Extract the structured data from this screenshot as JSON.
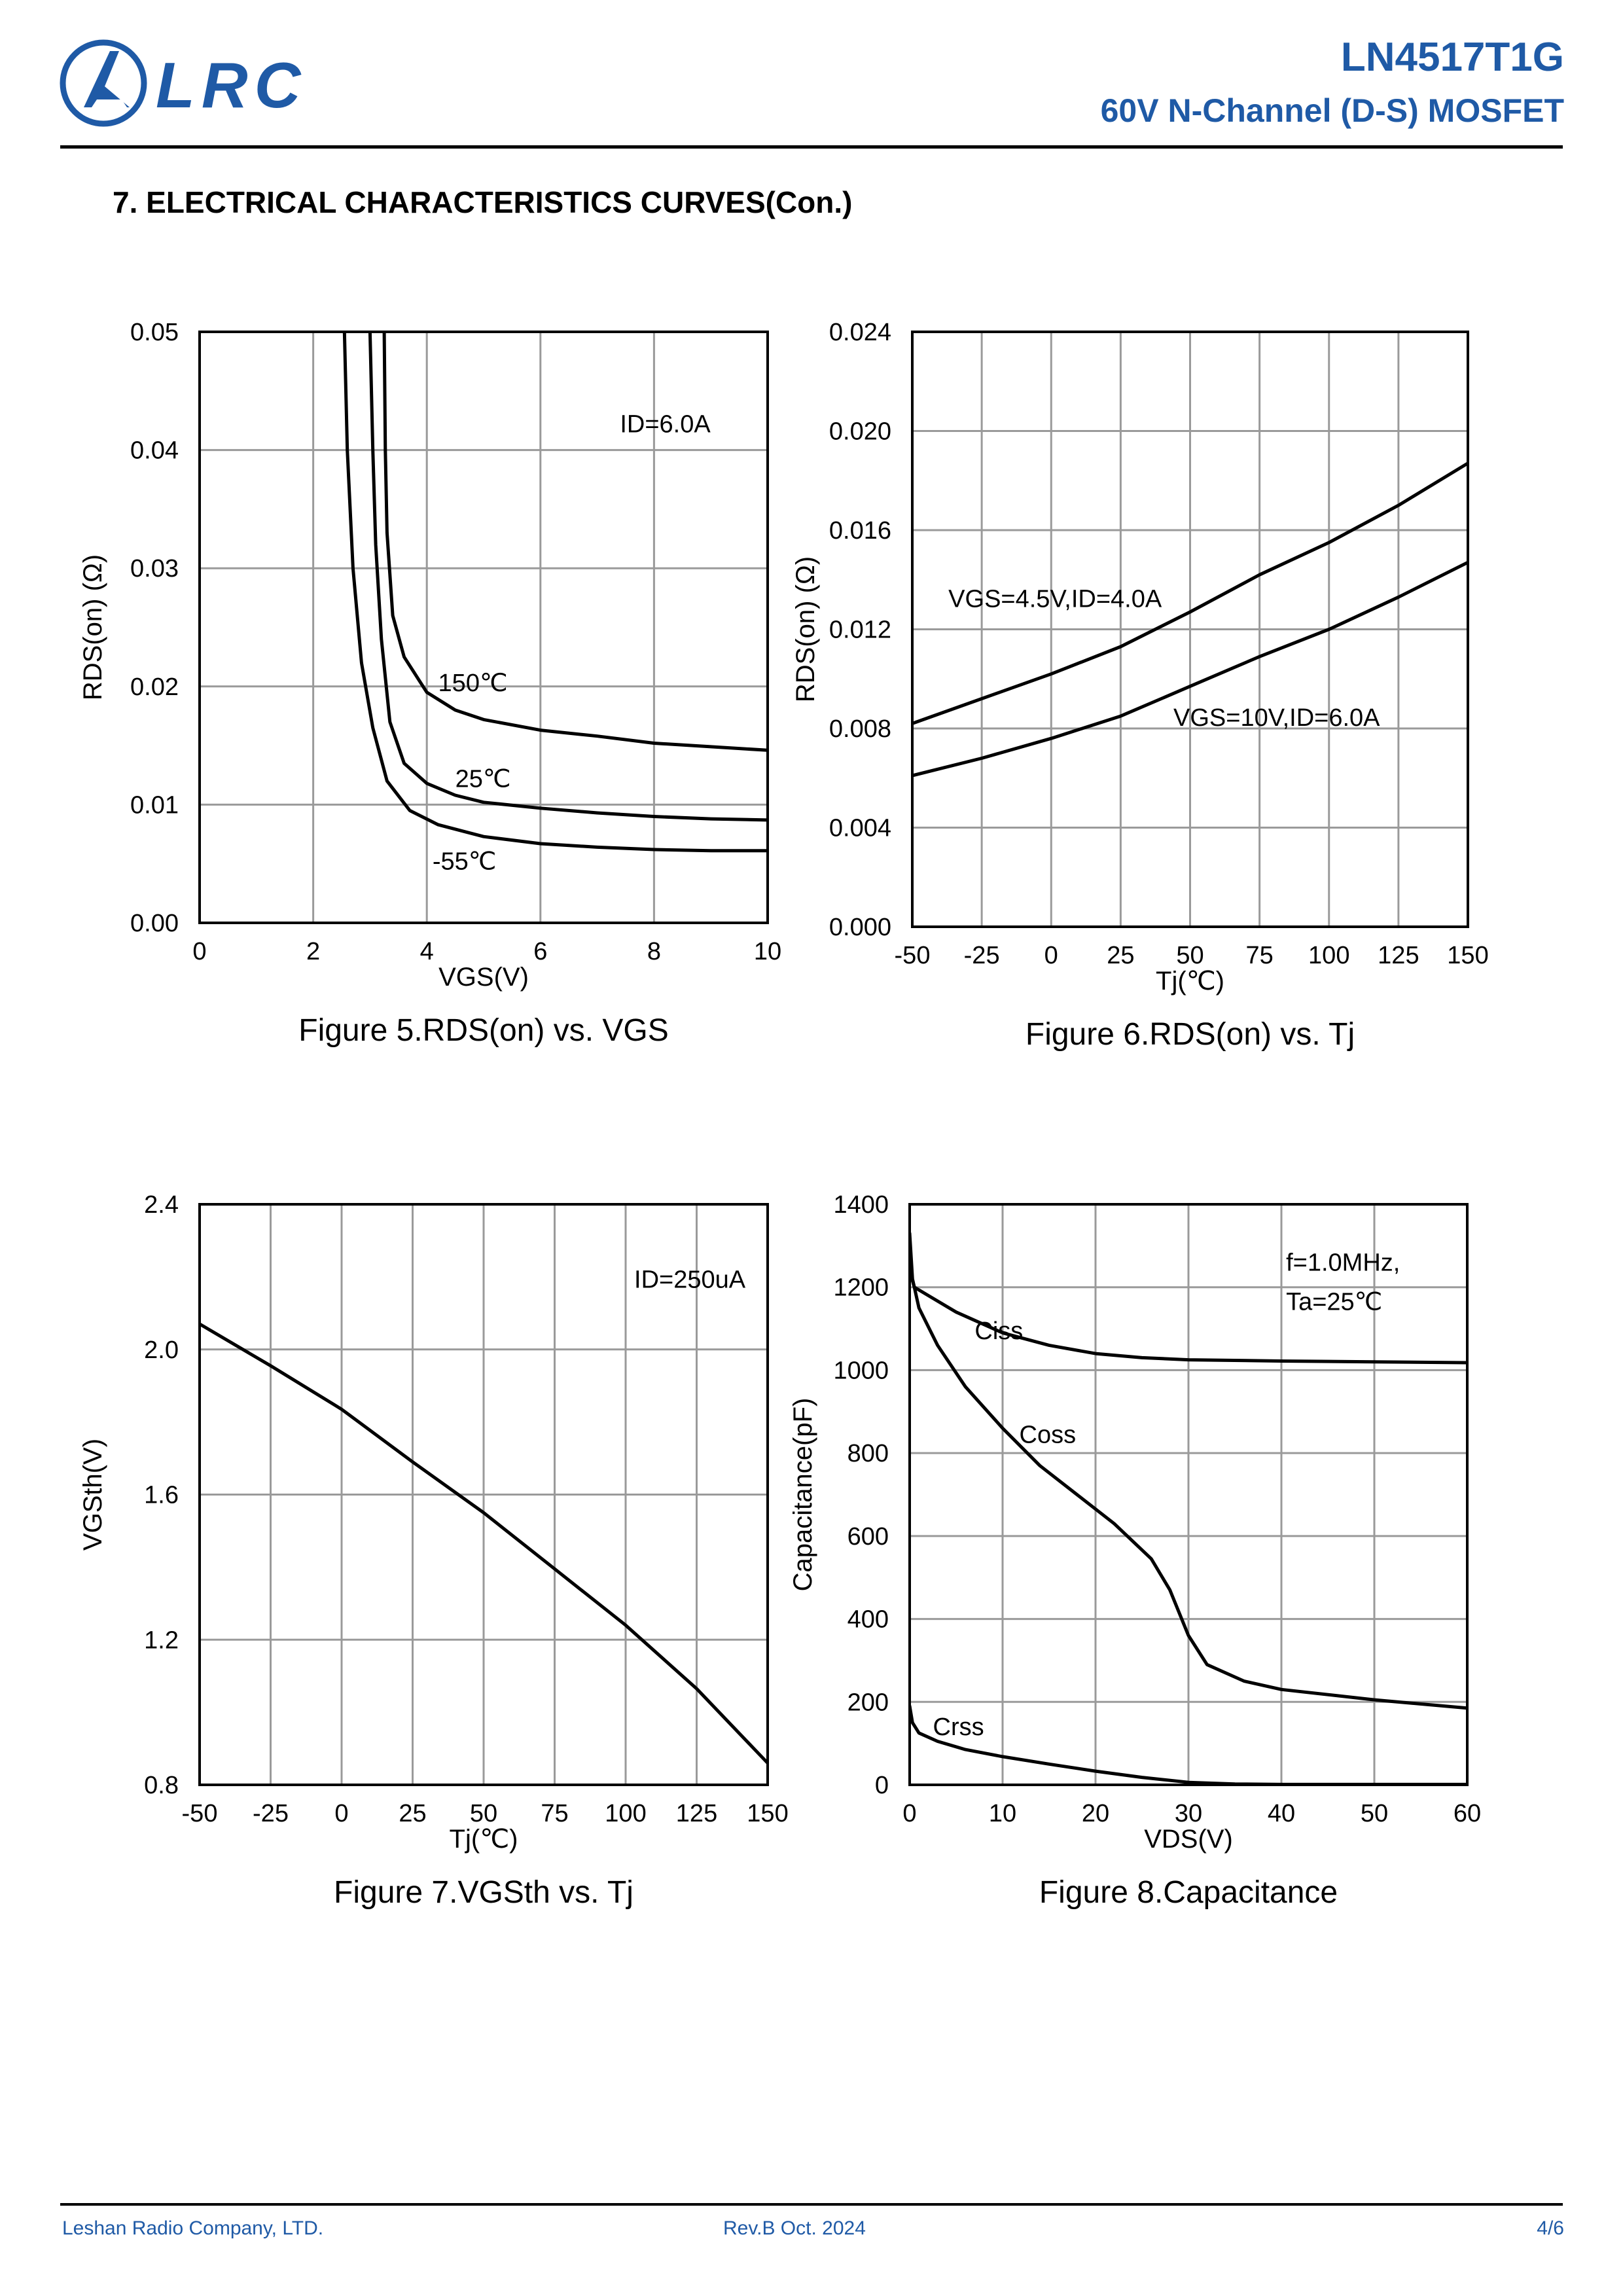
{
  "header": {
    "logo_text": "LRC",
    "part_number": "LN4517T1G",
    "subtitle": "60V N-Channel (D-S) MOSFET"
  },
  "section_title": "7. ELECTRICAL CHARACTERISTICS CURVES(Con.)",
  "footer": {
    "company": "Leshan Radio Company, LTD.",
    "revision": "Rev.B   Oct.  2024",
    "page": "4/6"
  },
  "colors": {
    "brand": "#1f5aa6",
    "grid": "#9a9a9a",
    "line": "#000000"
  },
  "chart_data": [
    {
      "type": "line",
      "caption": "Figure 5.RDS(on) vs. VGS",
      "xlabel": "VGS(V)",
      "ylabel": "RDS(on) (Ω)",
      "xlim": [
        0,
        10
      ],
      "ylim": [
        0,
        0.05
      ],
      "xticks": [
        0,
        2,
        4,
        6,
        8,
        10
      ],
      "yticks": [
        0.0,
        0.01,
        0.02,
        0.03,
        0.04,
        0.05
      ],
      "xtick_labels": [
        "0",
        "2",
        "4",
        "6",
        "8",
        "10"
      ],
      "ytick_labels": [
        "0.00",
        "0.01",
        "0.02",
        "0.03",
        "0.04",
        "0.05"
      ],
      "grid": true,
      "annotations": [
        {
          "text": "ID=6.0A",
          "x": 7.4,
          "y": 0.0415
        }
      ],
      "series": [
        {
          "name": "150℃",
          "label_at": [
            4.2,
            0.0196
          ],
          "points": [
            [
              3.25,
              0.05
            ],
            [
              3.27,
              0.04
            ],
            [
              3.3,
              0.033
            ],
            [
              3.4,
              0.026
            ],
            [
              3.6,
              0.0225
            ],
            [
              4,
              0.0195
            ],
            [
              4.5,
              0.018
            ],
            [
              5,
              0.0172
            ],
            [
              6,
              0.0163
            ],
            [
              7,
              0.0158
            ],
            [
              8,
              0.0152
            ],
            [
              9,
              0.0149
            ],
            [
              10,
              0.0146
            ]
          ]
        },
        {
          "name": "25℃",
          "label_at": [
            4.5,
            0.0115
          ],
          "points": [
            [
              3.0,
              0.05
            ],
            [
              3.05,
              0.04
            ],
            [
              3.1,
              0.032
            ],
            [
              3.2,
              0.024
            ],
            [
              3.35,
              0.017
            ],
            [
              3.6,
              0.0135
            ],
            [
              4,
              0.0118
            ],
            [
              4.5,
              0.0108
            ],
            [
              5,
              0.0102
            ],
            [
              6,
              0.0097
            ],
            [
              7,
              0.0093
            ],
            [
              8,
              0.009
            ],
            [
              9,
              0.0088
            ],
            [
              10,
              0.0087
            ]
          ]
        },
        {
          "name": "-55℃",
          "label_at": [
            4.1,
            0.0045
          ],
          "points": [
            [
              2.55,
              0.05
            ],
            [
              2.6,
              0.04
            ],
            [
              2.7,
              0.03
            ],
            [
              2.85,
              0.022
            ],
            [
              3.05,
              0.0165
            ],
            [
              3.3,
              0.012
            ],
            [
              3.7,
              0.0095
            ],
            [
              4.2,
              0.0083
            ],
            [
              5,
              0.0073
            ],
            [
              6,
              0.0067
            ],
            [
              7,
              0.0064
            ],
            [
              8,
              0.0062
            ],
            [
              9,
              0.0061
            ],
            [
              10,
              0.0061
            ]
          ]
        }
      ]
    },
    {
      "type": "line",
      "caption": "Figure 6.RDS(on) vs. Tj",
      "xlabel": "Tj(℃)",
      "ylabel": "RDS(on) (Ω)",
      "xlim": [
        -50,
        150
      ],
      "ylim": [
        0,
        0.024
      ],
      "xticks": [
        -50,
        -25,
        0,
        25,
        50,
        75,
        100,
        125,
        150
      ],
      "yticks": [
        0.0,
        0.004,
        0.008,
        0.012,
        0.016,
        0.02,
        0.024
      ],
      "xtick_labels": [
        "-50",
        "-25",
        "0",
        "25",
        "50",
        "75",
        "100",
        "125",
        "150"
      ],
      "ytick_labels": [
        "0.000",
        "0.004",
        "0.008",
        "0.012",
        "0.016",
        "0.020",
        "0.024"
      ],
      "grid": true,
      "annotations": [],
      "series": [
        {
          "name": "VGS=4.5V,ID=4.0A",
          "label_at": [
            -37,
            0.0129
          ],
          "points": [
            [
              -50,
              0.0082
            ],
            [
              -25,
              0.0092
            ],
            [
              0,
              0.0102
            ],
            [
              25,
              0.0113
            ],
            [
              50,
              0.0127
            ],
            [
              75,
              0.0142
            ],
            [
              100,
              0.0155
            ],
            [
              125,
              0.017
            ],
            [
              150,
              0.0187
            ]
          ]
        },
        {
          "name": "VGS=10V,ID=6.0A",
          "label_at": [
            44,
            0.0081
          ],
          "points": [
            [
              -50,
              0.0061
            ],
            [
              -25,
              0.0068
            ],
            [
              0,
              0.0076
            ],
            [
              25,
              0.0085
            ],
            [
              50,
              0.0097
            ],
            [
              75,
              0.0109
            ],
            [
              100,
              0.012
            ],
            [
              125,
              0.0133
            ],
            [
              150,
              0.0147
            ]
          ]
        }
      ]
    },
    {
      "type": "line",
      "caption": "Figure 7.VGSth vs. Tj",
      "xlabel": "Tj(℃)",
      "ylabel": "VGSth(V)",
      "xlim": [
        -50,
        150
      ],
      "ylim": [
        0.8,
        2.4
      ],
      "xticks": [
        -50,
        -25,
        0,
        25,
        50,
        75,
        100,
        125,
        150
      ],
      "yticks": [
        0.8,
        1.2,
        1.6,
        2.0,
        2.4
      ],
      "xtick_labels": [
        "-50",
        "-25",
        "0",
        "25",
        "50",
        "75",
        "100",
        "125",
        "150"
      ],
      "ytick_labels": [
        "0.8",
        "1.2",
        "1.6",
        "2.0",
        "2.4"
      ],
      "grid": true,
      "annotations": [
        {
          "text": "ID=250uA",
          "x": 103,
          "y": 2.17
        }
      ],
      "series": [
        {
          "name": "",
          "points": [
            [
              -50,
              2.07
            ],
            [
              -25,
              1.955
            ],
            [
              0,
              1.835
            ],
            [
              25,
              1.69
            ],
            [
              50,
              1.55
            ],
            [
              75,
              1.395
            ],
            [
              100,
              1.24
            ],
            [
              125,
              1.065
            ],
            [
              150,
              0.86
            ]
          ]
        }
      ]
    },
    {
      "type": "line",
      "caption": "Figure 8.Capacitance",
      "xlabel": "VDS(V)",
      "ylabel": "Capacitance(pF)",
      "xlim": [
        0,
        60
      ],
      "ylim": [
        0,
        1400
      ],
      "xticks": [
        0,
        10,
        20,
        30,
        40,
        50,
        60
      ],
      "yticks": [
        0,
        200,
        400,
        600,
        800,
        1000,
        1200,
        1400
      ],
      "xtick_labels": [
        "0",
        "10",
        "20",
        "30",
        "40",
        "50",
        "60"
      ],
      "ytick_labels": [
        "0",
        "200",
        "400",
        "600",
        "800",
        "1000",
        "1200",
        "1400"
      ],
      "grid": true,
      "annotations": [
        {
          "text": "f=1.0MHz,",
          "x": 40.5,
          "y": 1240
        },
        {
          "text": "Ta=25℃",
          "x": 40.5,
          "y": 1145
        }
      ],
      "series": [
        {
          "name": "Ciss",
          "label_at": [
            7,
            1075
          ],
          "points": [
            [
              0,
              1240
            ],
            [
              0.5,
              1200
            ],
            [
              2,
              1180
            ],
            [
              5,
              1140
            ],
            [
              10,
              1090
            ],
            [
              15,
              1060
            ],
            [
              20,
              1040
            ],
            [
              25,
              1030
            ],
            [
              30,
              1025
            ],
            [
              40,
              1022
            ],
            [
              50,
              1020
            ],
            [
              60,
              1018
            ]
          ]
        },
        {
          "name": "Coss",
          "label_at": [
            11.8,
            825
          ],
          "points": [
            [
              0,
              1330
            ],
            [
              0.3,
              1220
            ],
            [
              1,
              1150
            ],
            [
              3,
              1060
            ],
            [
              6,
              960
            ],
            [
              10,
              860
            ],
            [
              14,
              770
            ],
            [
              18,
              700
            ],
            [
              22,
              630
            ],
            [
              26,
              545
            ],
            [
              28,
              470
            ],
            [
              30,
              360
            ],
            [
              32,
              290
            ],
            [
              36,
              250
            ],
            [
              40,
              230
            ],
            [
              50,
              205
            ],
            [
              60,
              185
            ]
          ]
        },
        {
          "name": "Crss",
          "label_at": [
            2.5,
            120
          ],
          "points": [
            [
              0,
              190
            ],
            [
              0.3,
              150
            ],
            [
              1,
              125
            ],
            [
              3,
              105
            ],
            [
              6,
              85
            ],
            [
              10,
              68
            ],
            [
              15,
              50
            ],
            [
              20,
              33
            ],
            [
              25,
              18
            ],
            [
              30,
              6
            ],
            [
              35,
              2
            ],
            [
              40,
              1
            ],
            [
              50,
              1
            ],
            [
              60,
              1
            ]
          ]
        }
      ]
    }
  ]
}
